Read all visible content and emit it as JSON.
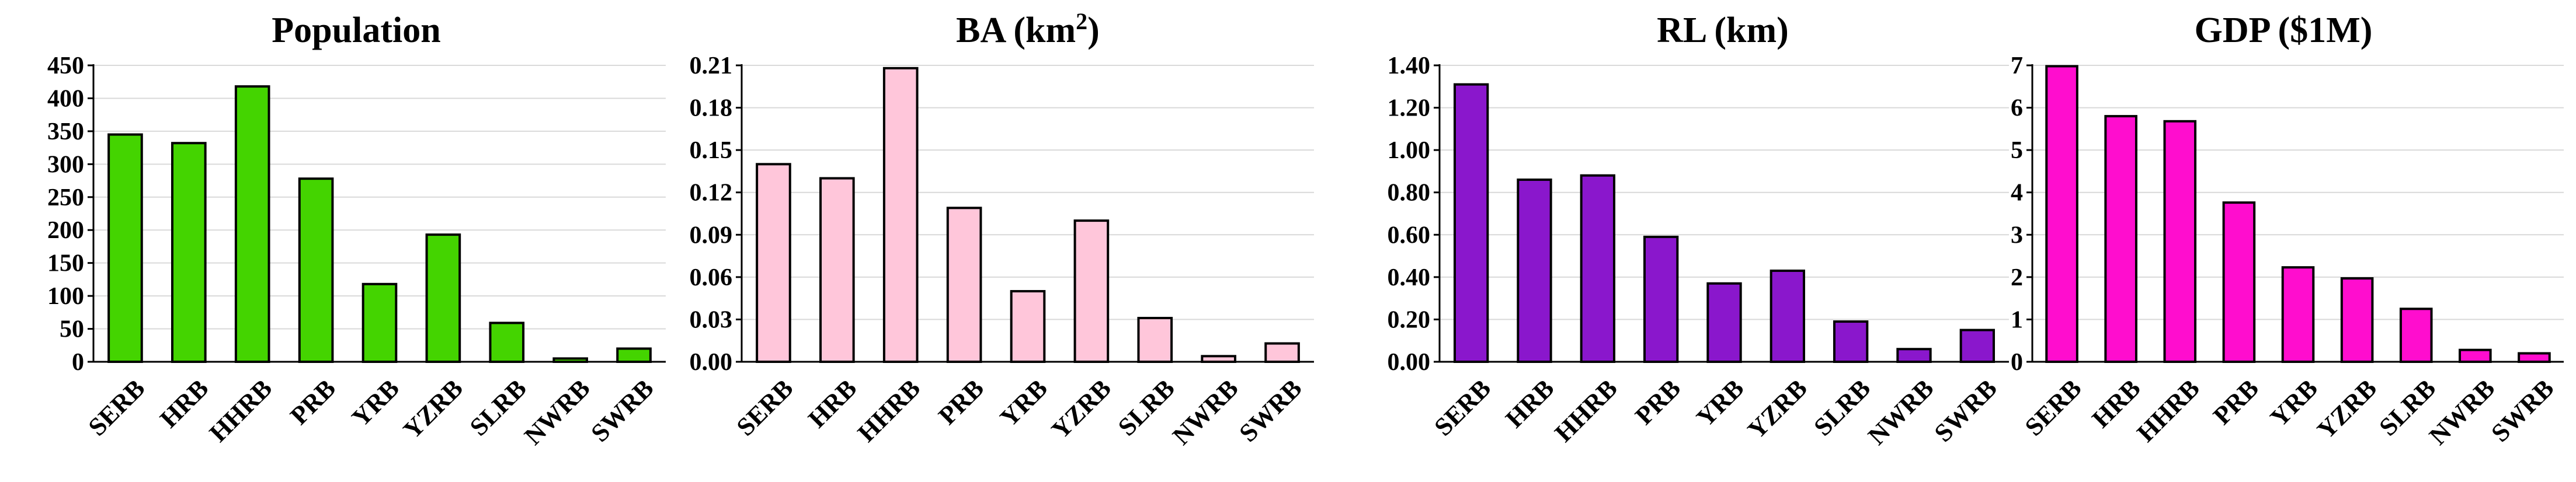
{
  "chart_data": [
    {
      "type": "bar",
      "title": "Population",
      "categories": [
        "SERB",
        "HRB",
        "HHRB",
        "PRB",
        "YRB",
        "YZRB",
        "SLRB",
        "NWRB",
        "SWRB"
      ],
      "values": [
        345,
        332,
        418,
        278,
        118,
        193,
        59,
        5,
        20
      ],
      "ylim": [
        0,
        450
      ],
      "yticks": [
        "0",
        "50",
        "100",
        "150",
        "200",
        "250",
        "300",
        "350",
        "400",
        "450"
      ],
      "color": "#44D400",
      "grid": true
    },
    {
      "type": "bar",
      "title": "BA (km",
      "title_sup": "2",
      "title_end": ")",
      "categories": [
        "SERB",
        "HRB",
        "HHRB",
        "PRB",
        "YRB",
        "YZRB",
        "SLRB",
        "NWRB",
        "SWRB"
      ],
      "values": [
        0.14,
        0.13,
        0.208,
        0.109,
        0.05,
        0.1,
        0.031,
        0.004,
        0.013
      ],
      "ylim": [
        0,
        0.21
      ],
      "yticks": [
        "0.00",
        "0.03",
        "0.06",
        "0.09",
        "0.12",
        "0.15",
        "0.18",
        "0.21"
      ],
      "color": "#FFC6DA",
      "grid": true
    },
    {
      "type": "bar",
      "title": "RL (km)",
      "categories": [
        "SERB",
        "HRB",
        "HHRB",
        "PRB",
        "YRB",
        "YZRB",
        "SLRB",
        "NWRB",
        "SWRB"
      ],
      "values": [
        1.31,
        0.86,
        0.88,
        0.59,
        0.37,
        0.43,
        0.19,
        0.06,
        0.15
      ],
      "ylim": [
        0,
        1.4
      ],
      "yticks": [
        "0.00",
        "0.20",
        "0.40",
        "0.60",
        "0.80",
        "1.00",
        "1.20",
        "1.40"
      ],
      "color": "#8A17CC",
      "grid": true
    },
    {
      "type": "bar",
      "title": "GDP ($1M)",
      "categories": [
        "SERB",
        "HRB",
        "HHRB",
        "PRB",
        "YRB",
        "YZRB",
        "SLRB",
        "NWRB",
        "SWRB"
      ],
      "values": [
        6.98,
        5.8,
        5.68,
        3.76,
        2.23,
        1.97,
        1.25,
        0.28,
        0.2
      ],
      "ylim": [
        0,
        7
      ],
      "yticks": [
        "0",
        "1",
        "2",
        "3",
        "4",
        "5",
        "6",
        "7"
      ],
      "color": "#FF0DCE",
      "grid": true
    }
  ]
}
